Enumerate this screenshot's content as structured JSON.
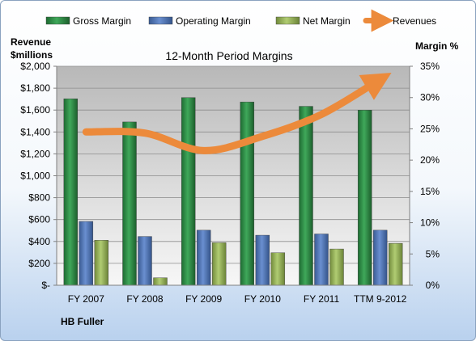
{
  "chart_data": {
    "type": "bar",
    "title": "12-Month Period Margins",
    "ylabel_left": [
      "Revenue",
      "$millions"
    ],
    "ylabel_right": "Margin %",
    "footer_label": "HB Fuller",
    "categories": [
      "FY 2007",
      "FY 2008",
      "FY 2009",
      "FY 2010",
      "FY 2011",
      "TTM 9-2012"
    ],
    "y_left_ticks": [
      "$-",
      "$200",
      "$400",
      "$600",
      "$800",
      "$1,000",
      "$1,200",
      "$1,400",
      "$1,600",
      "$1,800",
      "$2,000"
    ],
    "y_right_ticks": [
      "0%",
      "5%",
      "10%",
      "15%",
      "20%",
      "25%",
      "30%",
      "35%"
    ],
    "ylim_left": [
      0,
      2000
    ],
    "ylim_right": [
      0,
      35
    ],
    "grid": true,
    "legend_position": "top",
    "series": [
      {
        "name": "Gross Margin",
        "axis": "right",
        "kind": "bar",
        "color": "#2e8b44",
        "values": [
          29.8,
          26.1,
          30.0,
          29.3,
          28.6,
          28.0
        ]
      },
      {
        "name": "Operating Margin",
        "axis": "right",
        "kind": "bar",
        "color": "#4f74b5",
        "values": [
          10.2,
          7.8,
          8.8,
          8.0,
          8.2,
          8.8
        ]
      },
      {
        "name": "Net Margin",
        "axis": "right",
        "kind": "bar",
        "color": "#94b355",
        "values": [
          7.2,
          1.2,
          6.8,
          5.2,
          5.8,
          6.7
        ]
      },
      {
        "name": "Revenues",
        "axis": "left",
        "kind": "line",
        "color": "#ec8a3b",
        "values": [
          1400,
          1390,
          1230,
          1360,
          1560,
          1880
        ]
      }
    ]
  }
}
